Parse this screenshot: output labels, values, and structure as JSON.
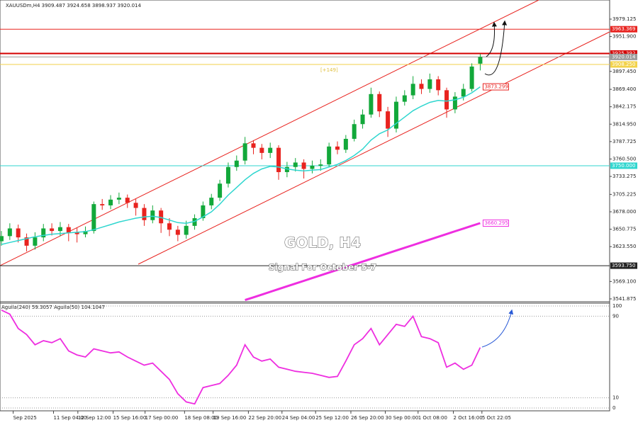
{
  "chart_data": [
    {
      "type": "candlestick",
      "title": "XAUUSDm,H4  3909.487 3924.658 3898.937 3920.014",
      "annotations": [
        "GOLD, H4",
        "Signal For October 5-7",
        "[+149]"
      ],
      "up_color": "#12a83a",
      "down_color": "#e8231f",
      "ylim": [
        3538.5,
        4009
      ],
      "yticks": [
        3979.125,
        {
          "value": 3951.9,
          "label": "3951.900"
        },
        {
          "value": 3897.45,
          "label": "3897.450"
        },
        {
          "value": 3869.4,
          "label": "3869.400"
        },
        3842.175,
        {
          "value": 3814.95,
          "label": "3814.950"
        },
        3787.725,
        {
          "value": 3760.5,
          "label": "3760.500"
        },
        3733.275,
        3705.225,
        {
          "value": 3678,
          "label": "3678.000"
        },
        3650.775,
        {
          "value": 3623.55,
          "label": "3623.550"
        },
        {
          "value": 3569.1,
          "label": "3569.100"
        },
        3541.875
      ],
      "xticks": [
        {
          "value": 1.4,
          "label": "Sep 2025"
        },
        {
          "value": 6.2,
          "label": "11 Sep 04:00"
        },
        {
          "value": 9.1,
          "label": "12 Sep 12:00"
        },
        {
          "value": 13.3,
          "label": "15 Sep 16:00"
        },
        {
          "value": 17.1,
          "label": "17 Sep 00:00"
        },
        {
          "value": 21.8,
          "label": "18 Sep 08:00"
        },
        {
          "value": 25.2,
          "label": "19 Sep 16:00"
        },
        {
          "value": 29.4,
          "label": "22 Sep 20:00"
        },
        {
          "value": 33.4,
          "label": "24 Sep 04:00"
        },
        {
          "value": 37.4,
          "label": "25 Sep 12:00"
        },
        {
          "value": 41.6,
          "label": "26 Sep 20:00"
        },
        {
          "value": 45.7,
          "label": "30 Sep 00:00"
        },
        {
          "value": 49.6,
          "label": "1 Oct 08:00"
        },
        {
          "value": 53.8,
          "label": "2 Oct 16:00"
        },
        {
          "value": 57.2,
          "label": "5 Oct 22:05"
        }
      ],
      "open": [
        3632,
        3640,
        3652,
        3638,
        3625,
        3638,
        3652,
        3648,
        3654,
        3646,
        3643,
        3648,
        3690,
        3688,
        3697,
        3700,
        3692,
        3684,
        3665,
        3680,
        3660,
        3650,
        3642,
        3656,
        3668,
        3688,
        3700,
        3722,
        3748,
        3758,
        3785,
        3778,
        3770,
        3778,
        3740,
        3748,
        3755,
        3745,
        3750,
        3752,
        3780,
        3775,
        3792,
        3815,
        3830,
        3862,
        3835,
        3808,
        3850,
        3860,
        3878,
        3870,
        3885,
        3868,
        3838,
        3858,
        3870,
        3909.487
      ],
      "high": [
        3648,
        3660,
        3658,
        3644,
        3646,
        3659,
        3660,
        3662,
        3659,
        3653,
        3655,
        3694,
        3698,
        3704,
        3708,
        3705,
        3698,
        3690,
        3688,
        3684,
        3668,
        3656,
        3664,
        3674,
        3694,
        3706,
        3728,
        3755,
        3766,
        3795,
        3790,
        3784,
        3786,
        3782,
        3756,
        3762,
        3760,
        3758,
        3760,
        3786,
        3788,
        3798,
        3822,
        3838,
        3872,
        3866,
        3842,
        3858,
        3868,
        3890,
        3885,
        3894,
        3890,
        3872,
        3865,
        3878,
        3910,
        3924.658
      ],
      "low": [
        3625,
        3634,
        3630,
        3616,
        3619,
        3632,
        3641,
        3640,
        3632,
        3630,
        3638,
        3644,
        3681,
        3682,
        3690,
        3684,
        3672,
        3656,
        3660,
        3645,
        3640,
        3632,
        3636,
        3650,
        3664,
        3682,
        3695,
        3716,
        3742,
        3752,
        3768,
        3760,
        3762,
        3728,
        3732,
        3741,
        3730,
        3738,
        3742,
        3748,
        3768,
        3770,
        3788,
        3808,
        3825,
        3826,
        3795,
        3802,
        3844,
        3854,
        3862,
        3864,
        3860,
        3825,
        3832,
        3852,
        3866,
        3898.937
      ],
      "close": [
        3640,
        3652,
        3638,
        3625,
        3638,
        3652,
        3648,
        3654,
        3646,
        3643,
        3648,
        3690,
        3688,
        3697,
        3700,
        3692,
        3684,
        3665,
        3680,
        3660,
        3650,
        3642,
        3656,
        3668,
        3688,
        3700,
        3722,
        3748,
        3758,
        3785,
        3778,
        3770,
        3778,
        3740,
        3748,
        3755,
        3745,
        3750,
        3752,
        3780,
        3775,
        3792,
        3815,
        3830,
        3862,
        3835,
        3808,
        3850,
        3860,
        3878,
        3870,
        3885,
        3868,
        3838,
        3858,
        3870,
        3905,
        3920.014
      ],
      "lines": [
        {
          "color": "#2fd6cf",
          "values": [
            3627,
            3630,
            3633,
            3636,
            3639,
            3641,
            3643,
            3644,
            3645,
            3646,
            3647,
            3650,
            3654,
            3658,
            3662,
            3665,
            3668,
            3670,
            3671,
            3669,
            3665,
            3661,
            3660,
            3663,
            3670,
            3678,
            3690,
            3704,
            3716,
            3728,
            3738,
            3745,
            3749,
            3748,
            3745,
            3743,
            3742,
            3743,
            3744,
            3748,
            3752,
            3758,
            3766,
            3776,
            3790,
            3800,
            3806,
            3816,
            3826,
            3836,
            3843,
            3849,
            3852,
            3851,
            3853,
            3857,
            3864,
            3873.299
          ]
        },
        {
          "color": "#ee2ee0",
          "values": [
            null,
            null,
            null,
            null,
            null,
            null,
            null,
            null,
            null,
            null,
            null,
            null,
            null,
            null,
            null,
            null,
            null,
            null,
            null,
            null,
            null,
            null,
            null,
            null,
            null,
            null,
            null,
            null,
            null,
            3540,
            3544.3,
            3548.6,
            3552.9,
            3557.2,
            3561.5,
            3565.8,
            3570.1,
            3574.4,
            3578.7,
            3583,
            3587.3,
            3591.6,
            3595.9,
            3600.2,
            3604.5,
            3608.8,
            3613.1,
            3617.4,
            3621.7,
            3626,
            3630.3,
            3634.6,
            3638.9,
            3643.2,
            3647.5,
            3651.8,
            3656.1,
            3660.295
          ]
        }
      ],
      "levels": [
        {
          "value": 3963.369,
          "color": "#e8231f",
          "line": true
        },
        {
          "value": 3925.392,
          "color": "#d40000",
          "line": true
        },
        {
          "value": 3920.014,
          "color": "#9a9a9a",
          "line": true
        },
        {
          "value": 3908.25,
          "label": "3908.250",
          "color": "#f2d24a",
          "line": true
        },
        {
          "value": 3873.299,
          "color": "#e8231f",
          "line": false
        },
        {
          "value": 3750,
          "label": "3750.000",
          "color": "#2fd6cf",
          "line": true
        },
        {
          "value": 3660.295,
          "color": "#ee2ee0",
          "line": false
        },
        {
          "value": 3593.75,
          "label": "3593.750",
          "color": "#222222",
          "line": true
        }
      ]
    },
    {
      "type": "line",
      "title": "Aguila(240) 59.3057  Aguila(50) 104.1047",
      "ylim": [
        0,
        100
      ],
      "yticks": [
        0,
        10,
        90,
        100
      ],
      "series": [
        {
          "color": "#ee2ee0",
          "values": [
            96,
            92,
            78,
            72,
            62,
            66,
            64,
            68,
            56,
            52,
            50,
            58,
            56,
            54,
            55,
            50,
            46,
            42,
            44,
            36,
            28,
            14,
            6,
            4,
            20,
            22,
            24,
            32,
            42,
            62,
            50,
            46,
            48,
            40,
            38,
            36,
            35,
            34,
            32,
            30,
            31,
            46,
            62,
            68,
            78,
            62,
            72,
            82,
            80,
            90,
            70,
            68,
            64,
            40,
            44,
            38,
            42,
            59.3057
          ]
        }
      ]
    }
  ]
}
